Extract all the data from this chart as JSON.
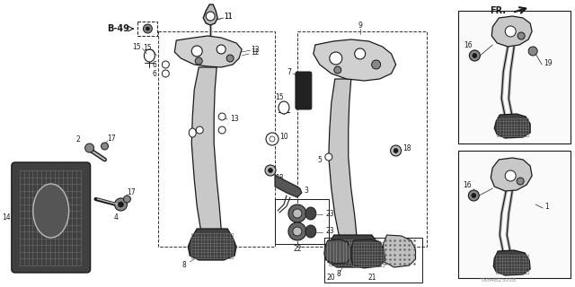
{
  "bg_color": "#ffffff",
  "fig_width": 6.4,
  "fig_height": 3.2,
  "dpi": 100,
  "watermark": "TX84B2301B",
  "dark": "#1a1a1a",
  "gray": "#666666",
  "light_gray": "#bbbbbb",
  "mid_gray": "#888888"
}
